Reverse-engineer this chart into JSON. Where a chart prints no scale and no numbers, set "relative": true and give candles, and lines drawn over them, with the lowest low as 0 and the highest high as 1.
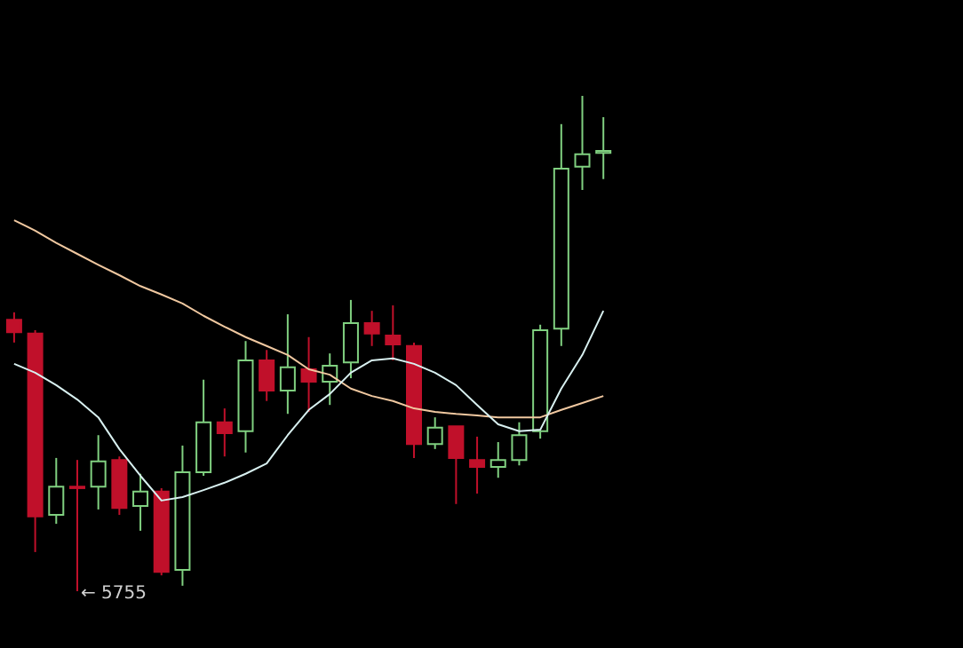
{
  "chart_data": {
    "type": "candlestick",
    "relative": true,
    "categories": [
      null,
      null,
      null,
      null,
      null,
      null,
      null,
      null,
      null,
      null,
      null,
      null,
      null,
      null,
      null,
      null,
      null,
      null,
      null,
      null,
      null,
      null,
      null,
      null,
      null,
      null,
      null,
      null,
      null
    ],
    "ohlc": [
      [
        0.548,
        0.563,
        0.502,
        0.523
      ],
      [
        0.52,
        0.527,
        0.079,
        0.151
      ],
      [
        0.154,
        0.269,
        0.136,
        0.211
      ],
      [
        0.211,
        0.265,
        0,
        0.208
      ],
      [
        0.211,
        0.315,
        0.165,
        0.262
      ],
      [
        0.265,
        0.272,
        0.154,
        0.168
      ],
      [
        0.172,
        0.237,
        0.122,
        0.201
      ],
      [
        0.201,
        0.208,
        0.032,
        0.039
      ],
      [
        0.043,
        0.294,
        0.011,
        0.24
      ],
      [
        0.24,
        0.427,
        0.233,
        0.341
      ],
      [
        0.341,
        0.369,
        0.272,
        0.319
      ],
      [
        0.323,
        0.505,
        0.28,
        0.466
      ],
      [
        0.466,
        0.487,
        0.384,
        0.405
      ],
      [
        0.405,
        0.559,
        0.358,
        0.452
      ],
      [
        0.448,
        0.513,
        0.362,
        0.423
      ],
      [
        0.423,
        0.48,
        0.376,
        0.455
      ],
      [
        0.462,
        0.588,
        0.43,
        0.541
      ],
      [
        0.541,
        0.566,
        0.495,
        0.52
      ],
      [
        0.516,
        0.577,
        0.466,
        0.498
      ],
      [
        0.495,
        0.502,
        0.269,
        0.297
      ],
      [
        0.297,
        0.351,
        0.287,
        0.33
      ],
      [
        0.333,
        0.333,
        0.176,
        0.269
      ],
      [
        0.265,
        0.312,
        0.197,
        0.251
      ],
      [
        0.251,
        0.301,
        0.229,
        0.265
      ],
      [
        0.265,
        0.341,
        0.254,
        0.315
      ],
      [
        0.323,
        0.538,
        0.308,
        0.527
      ],
      [
        0.53,
        0.943,
        0.495,
        0.853
      ],
      [
        0.857,
        1,
        0.81,
        0.882
      ],
      [
        0.885,
        0.957,
        0.832,
        0.889
      ]
    ],
    "colors": [
      "#c0102a",
      "#c0102a",
      "#80d080",
      "#c0102a",
      "#80d080",
      "#c0102a",
      "#80d080",
      "#c0102a",
      "#80d080",
      "#80d080",
      "#c0102a",
      "#80d080",
      "#c0102a",
      "#80d080",
      "#c0102a",
      "#80d080",
      "#80d080",
      "#c0102a",
      "#c0102a",
      "#c0102a",
      "#80d080",
      "#c0102a",
      "#c0102a",
      "#80d080",
      "#80d080",
      "#80d080",
      "#80d080",
      "#80d080",
      "#80d080"
    ],
    "series": [
      {
        "type": "line",
        "color": "#f0c8a0",
        "values": [
          0.749,
          0.728,
          0.703,
          0.681,
          0.659,
          0.638,
          0.616,
          0.599,
          0.581,
          0.556,
          0.534,
          0.513,
          0.495,
          0.477,
          0.448,
          0.437,
          0.409,
          0.394,
          0.384,
          0.369,
          0.362,
          0.358,
          0.355,
          0.351,
          0.351,
          0.351,
          0.366,
          0.38,
          0.394
        ]
      },
      {
        "type": "line",
        "color": "#d8f0f0",
        "values": [
          0.459,
          0.441,
          0.416,
          0.387,
          0.351,
          0.287,
          0.233,
          0.183,
          0.19,
          0.204,
          0.219,
          0.237,
          0.258,
          0.315,
          0.366,
          0.398,
          0.441,
          0.466,
          0.47,
          0.459,
          0.441,
          0.416,
          0.376,
          0.337,
          0.323,
          0.326,
          0.409,
          0.477,
          0.566
        ]
      }
    ],
    "annotations": [
      "← 5755"
    ]
  }
}
